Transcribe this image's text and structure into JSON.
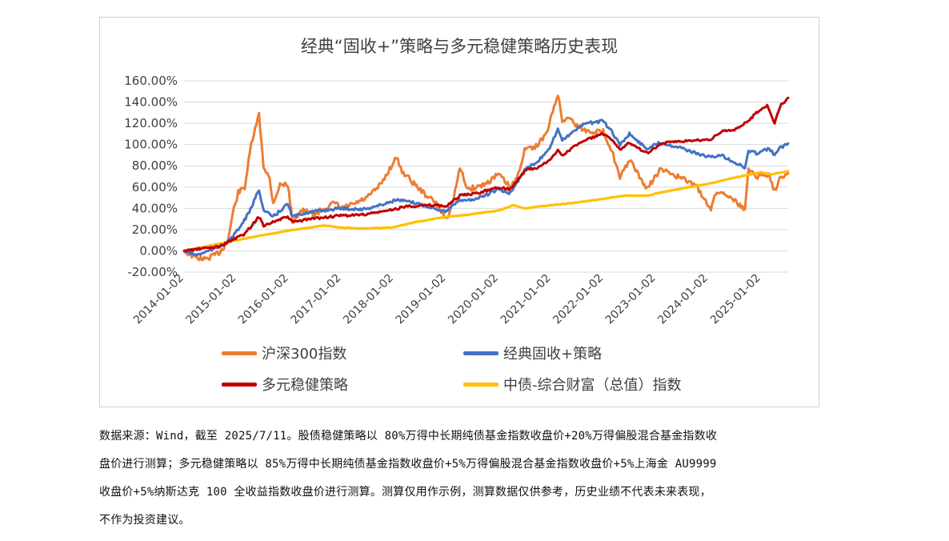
{
  "chart_data": {
    "type": "line",
    "title": "经典“固收+”策略与多元稳健策略历史表现",
    "xlabel": "",
    "ylabel": "",
    "ylim": [
      -20,
      160
    ],
    "yticks": [
      "160.00%",
      "140.00%",
      "120.00%",
      "100.00%",
      "80.00%",
      "60.00%",
      "40.00%",
      "20.00%",
      "0.00%",
      "-20.00%"
    ],
    "xticks": [
      "2014-01-02",
      "2015-01-02",
      "2016-01-02",
      "2017-01-02",
      "2018-01-02",
      "2019-01-02",
      "2020-01-02",
      "2021-01-02",
      "2022-01-02",
      "2023-01-02",
      "2024-01-02",
      "2025-01-02"
    ],
    "xrange": [
      "2014-01-02",
      "2025-07-11"
    ],
    "grid": "horizontal",
    "legend_position": "bottom",
    "series": [
      {
        "name": "沪深300指数",
        "color": "#ED7D31",
        "points": [
          [
            "2014-01-02",
            0
          ],
          [
            "2014-03-15",
            -6
          ],
          [
            "2014-06-01",
            -8
          ],
          [
            "2014-09-01",
            -2
          ],
          [
            "2014-11-01",
            8
          ],
          [
            "2014-12-15",
            40
          ],
          [
            "2015-01-15",
            55
          ],
          [
            "2015-03-01",
            60
          ],
          [
            "2015-04-15",
            100
          ],
          [
            "2015-06-08",
            128
          ],
          [
            "2015-07-10",
            80
          ],
          [
            "2015-08-20",
            68
          ],
          [
            "2015-09-15",
            45
          ],
          [
            "2015-11-01",
            62
          ],
          [
            "2015-12-25",
            63
          ],
          [
            "2016-01-28",
            28
          ],
          [
            "2016-04-01",
            38
          ],
          [
            "2016-07-01",
            34
          ],
          [
            "2016-09-01",
            40
          ],
          [
            "2016-11-20",
            45
          ],
          [
            "2017-01-02",
            40
          ],
          [
            "2017-04-01",
            44
          ],
          [
            "2017-07-01",
            50
          ],
          [
            "2017-10-01",
            62
          ],
          [
            "2018-01-20",
            88
          ],
          [
            "2018-03-01",
            75
          ],
          [
            "2018-06-01",
            62
          ],
          [
            "2018-08-01",
            54
          ],
          [
            "2018-10-15",
            46
          ],
          [
            "2019-01-03",
            30
          ],
          [
            "2019-02-15",
            45
          ],
          [
            "2019-04-08",
            78
          ],
          [
            "2019-06-01",
            58
          ],
          [
            "2019-08-01",
            60
          ],
          [
            "2019-10-01",
            63
          ],
          [
            "2019-12-31",
            72
          ],
          [
            "2020-03-23",
            60
          ],
          [
            "2020-05-01",
            66
          ],
          [
            "2020-07-10",
            98
          ],
          [
            "2020-09-01",
            96
          ],
          [
            "2020-12-01",
            110
          ],
          [
            "2021-02-18",
            148
          ],
          [
            "2021-03-20",
            122
          ],
          [
            "2021-05-01",
            126
          ],
          [
            "2021-07-01",
            118
          ],
          [
            "2021-09-01",
            113
          ],
          [
            "2021-12-31",
            112
          ],
          [
            "2022-03-01",
            95
          ],
          [
            "2022-04-26",
            68
          ],
          [
            "2022-07-01",
            86
          ],
          [
            "2022-10-31",
            58
          ],
          [
            "2023-01-28",
            76
          ],
          [
            "2023-04-01",
            74
          ],
          [
            "2023-07-01",
            68
          ],
          [
            "2023-10-01",
            62
          ],
          [
            "2024-01-20",
            40
          ],
          [
            "2024-03-01",
            56
          ],
          [
            "2024-06-01",
            52
          ],
          [
            "2024-09-13",
            38
          ],
          [
            "2024-10-08",
            78
          ],
          [
            "2024-12-01",
            70
          ],
          [
            "2025-03-01",
            72
          ],
          [
            "2025-04-08",
            56
          ],
          [
            "2025-05-15",
            70
          ],
          [
            "2025-07-11",
            73
          ]
        ]
      },
      {
        "name": "经典固收+策略",
        "color": "#4472C4",
        "points": [
          [
            "2014-01-02",
            0
          ],
          [
            "2014-04-01",
            -4
          ],
          [
            "2014-08-01",
            2
          ],
          [
            "2014-11-01",
            8
          ],
          [
            "2015-01-15",
            20
          ],
          [
            "2015-04-01",
            36
          ],
          [
            "2015-06-08",
            58
          ],
          [
            "2015-07-10",
            38
          ],
          [
            "2015-09-15",
            32
          ],
          [
            "2015-12-25",
            44
          ],
          [
            "2016-01-28",
            32
          ],
          [
            "2016-05-01",
            36
          ],
          [
            "2016-09-01",
            38
          ],
          [
            "2016-12-20",
            40
          ],
          [
            "2017-06-01",
            39
          ],
          [
            "2017-10-01",
            43
          ],
          [
            "2018-01-20",
            48
          ],
          [
            "2018-06-01",
            45
          ],
          [
            "2018-10-15",
            40
          ],
          [
            "2019-01-03",
            37
          ],
          [
            "2019-04-08",
            48
          ],
          [
            "2019-07-01",
            48
          ],
          [
            "2019-10-01",
            52
          ],
          [
            "2019-12-31",
            58
          ],
          [
            "2020-03-23",
            54
          ],
          [
            "2020-07-10",
            78
          ],
          [
            "2020-10-01",
            84
          ],
          [
            "2020-12-31",
            98
          ],
          [
            "2021-02-18",
            116
          ],
          [
            "2021-03-20",
            104
          ],
          [
            "2021-06-01",
            112
          ],
          [
            "2021-09-01",
            120
          ],
          [
            "2021-12-31",
            122
          ],
          [
            "2022-03-01",
            112
          ],
          [
            "2022-04-26",
            100
          ],
          [
            "2022-07-01",
            110
          ],
          [
            "2022-10-31",
            96
          ],
          [
            "2023-01-28",
            102
          ],
          [
            "2023-04-01",
            100
          ],
          [
            "2023-07-01",
            97
          ],
          [
            "2023-10-01",
            92
          ],
          [
            "2024-01-20",
            88
          ],
          [
            "2024-04-01",
            90
          ],
          [
            "2024-09-13",
            78
          ],
          [
            "2024-10-08",
            94
          ],
          [
            "2024-12-01",
            92
          ],
          [
            "2025-03-01",
            96
          ],
          [
            "2025-04-08",
            90
          ],
          [
            "2025-05-15",
            97
          ],
          [
            "2025-07-11",
            101
          ]
        ]
      },
      {
        "name": "多元稳健策略",
        "color": "#C00000",
        "points": [
          [
            "2014-01-02",
            0
          ],
          [
            "2014-05-01",
            2
          ],
          [
            "2014-09-01",
            4
          ],
          [
            "2014-12-01",
            10
          ],
          [
            "2015-03-01",
            16
          ],
          [
            "2015-06-08",
            32
          ],
          [
            "2015-07-10",
            24
          ],
          [
            "2015-10-01",
            28
          ],
          [
            "2015-12-25",
            32
          ],
          [
            "2016-01-28",
            27
          ],
          [
            "2016-06-01",
            30
          ],
          [
            "2016-12-20",
            33
          ],
          [
            "2017-06-01",
            34
          ],
          [
            "2017-12-01",
            38
          ],
          [
            "2018-04-01",
            42
          ],
          [
            "2018-10-15",
            43
          ],
          [
            "2019-01-03",
            42
          ],
          [
            "2019-04-08",
            52
          ],
          [
            "2019-08-01",
            54
          ],
          [
            "2019-12-31",
            60
          ],
          [
            "2020-03-23",
            58
          ],
          [
            "2020-07-10",
            76
          ],
          [
            "2020-10-01",
            78
          ],
          [
            "2020-12-31",
            86
          ],
          [
            "2021-02-18",
            95
          ],
          [
            "2021-03-20",
            90
          ],
          [
            "2021-07-01",
            100
          ],
          [
            "2021-10-01",
            106
          ],
          [
            "2021-12-31",
            110
          ],
          [
            "2022-03-01",
            104
          ],
          [
            "2022-04-26",
            95
          ],
          [
            "2022-07-01",
            102
          ],
          [
            "2022-10-31",
            92
          ],
          [
            "2023-01-28",
            100
          ],
          [
            "2023-04-01",
            102
          ],
          [
            "2023-07-01",
            103
          ],
          [
            "2023-10-01",
            104
          ],
          [
            "2024-01-20",
            105
          ],
          [
            "2024-04-01",
            112
          ],
          [
            "2024-07-01",
            114
          ],
          [
            "2024-10-08",
            122
          ],
          [
            "2024-12-01",
            130
          ],
          [
            "2025-02-15",
            137
          ],
          [
            "2025-04-08",
            120
          ],
          [
            "2025-05-15",
            136
          ],
          [
            "2025-07-11",
            144
          ]
        ]
      },
      {
        "name": "中债-综合财富（总值）指数",
        "color": "#FFC000",
        "points": [
          [
            "2014-01-02",
            0
          ],
          [
            "2014-06-01",
            4
          ],
          [
            "2015-01-02",
            10
          ],
          [
            "2015-06-01",
            14
          ],
          [
            "2016-01-02",
            19
          ],
          [
            "2016-09-01",
            24
          ],
          [
            "2016-12-15",
            22
          ],
          [
            "2017-06-01",
            21
          ],
          [
            "2017-12-20",
            22
          ],
          [
            "2018-06-01",
            27
          ],
          [
            "2019-01-02",
            32
          ],
          [
            "2019-06-01",
            34
          ],
          [
            "2020-01-02",
            38
          ],
          [
            "2020-04-15",
            43
          ],
          [
            "2020-07-01",
            40
          ],
          [
            "2020-12-31",
            43
          ],
          [
            "2021-06-01",
            45
          ],
          [
            "2022-01-02",
            49
          ],
          [
            "2022-06-01",
            52
          ],
          [
            "2022-11-15",
            52
          ],
          [
            "2023-01-02",
            54
          ],
          [
            "2023-06-01",
            58
          ],
          [
            "2024-01-02",
            63
          ],
          [
            "2024-06-01",
            68
          ],
          [
            "2025-01-02",
            74
          ],
          [
            "2025-03-15",
            72
          ],
          [
            "2025-07-11",
            75
          ]
        ]
      }
    ]
  },
  "legend": [
    {
      "label": "沪深300指数",
      "color": "#ED7D31"
    },
    {
      "label": "经典固收+策略",
      "color": "#4472C4"
    },
    {
      "label": "多元稳健策略",
      "color": "#C00000"
    },
    {
      "label": "中债-综合财富（总值）指数",
      "color": "#FFC000"
    }
  ],
  "note": {
    "line1": "数据来源：Wind，截至 2025/7/11。股债稳健策略以 80%万得中长期纯债基金指数收盘价+20%万得偏股混合基金指数收",
    "line2": "盘价进行测算；多元稳健策略以 85%万得中长期纯债基金指数收盘价+5%万得偏股混合基金指数收盘价+5%上海金 AU9999",
    "line3": "收盘价+5%纳斯达克 100 全收益指数收盘价进行测算。测算仅用作示例，测算数据仅供参考，历史业绩不代表未来表现，",
    "line4": "不作为投资建议。"
  }
}
